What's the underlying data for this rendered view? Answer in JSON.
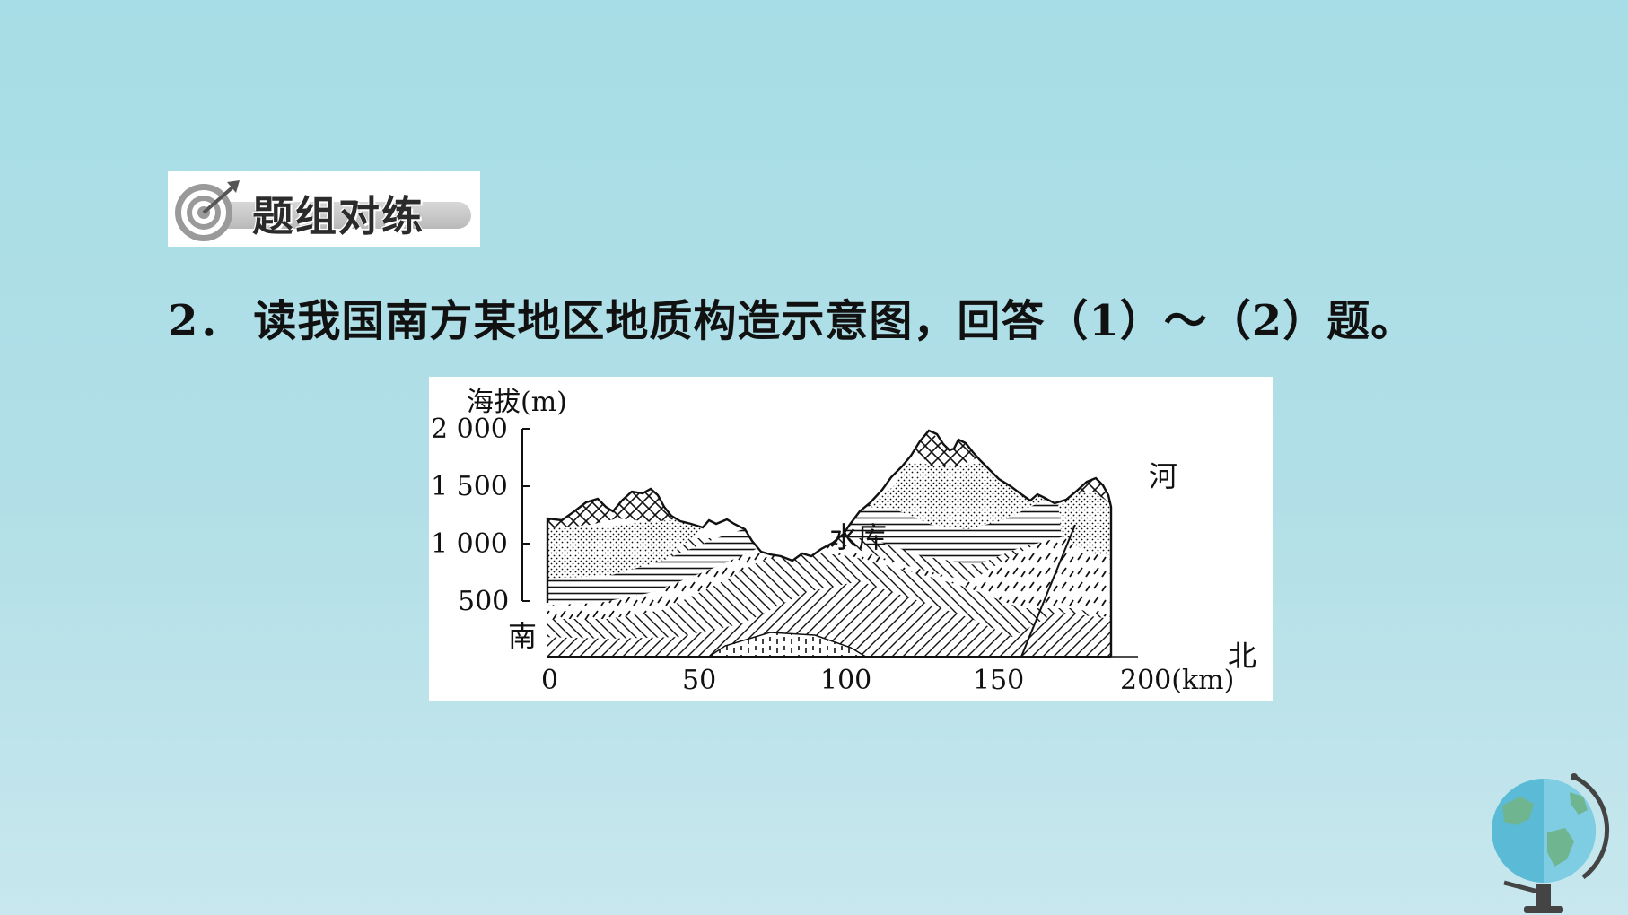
{
  "badge": {
    "text": "题组对练"
  },
  "question": {
    "number": "2．",
    "text": "读我国南方某地区地质构造示意图，回答（1）～（2）题。"
  },
  "figure": {
    "y_axis_title": "海拔(m)",
    "y_ticks": [
      "2 000",
      "1 500",
      "1 000",
      "500"
    ],
    "x_ticks": [
      "0",
      "50",
      "100",
      "150",
      "200(km)"
    ],
    "labels": {
      "south": "南",
      "north": "北",
      "reservoir": "水库",
      "river": "河"
    }
  }
}
